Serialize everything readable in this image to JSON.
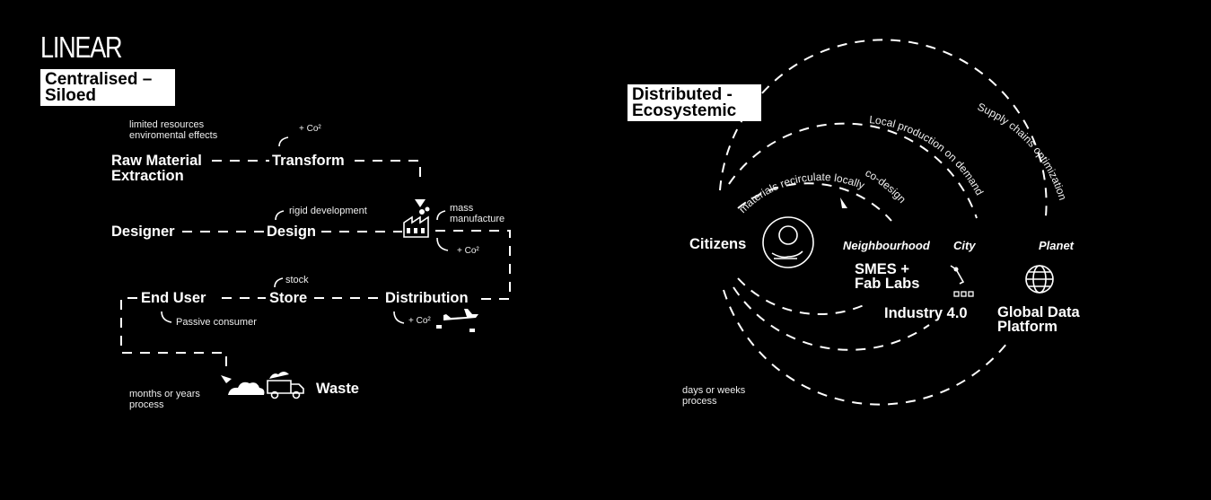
{
  "linear": {
    "title": "LINEAR",
    "subtitle_line1": "Centralised –",
    "subtitle_line2": "Siloed",
    "notes": {
      "resources_line1": "limited resources",
      "resources_line2": "enviromental effects",
      "co2_transform": "+ Co²",
      "rigid": "rigid development",
      "mass_line1": "mass",
      "mass_line2": "manufacture",
      "co2_factory": "+ Co²",
      "stock": "stock",
      "passive": "Passive consumer",
      "co2_distribution": "+ Co²",
      "time_line1": "months or years",
      "time_line2": "process"
    },
    "nodes": {
      "raw_line1": "Raw Material",
      "raw_line2": "Extraction",
      "transform": "Transform",
      "designer": "Designer",
      "design": "Design",
      "end_user": "End User",
      "store": "Store",
      "distribution": "Distribution",
      "waste": "Waste"
    }
  },
  "distributed": {
    "subtitle_line1": "Distributed -",
    "subtitle_line2": "Ecosystemic",
    "arc_labels": {
      "recirculate": "materials recirculate locally",
      "codesign": "co-design",
      "local_production": "Local production on demand",
      "supply": "Supply chains optimization"
    },
    "scales": {
      "citizens": "Citizens",
      "neighbourhood": "Neighbourhood",
      "city": "City",
      "planet": "Planet"
    },
    "actors": {
      "smes_line1": "SMES +",
      "smes_line2": "Fab Labs",
      "industry": "Industry 4.0",
      "global_line1": "Global Data",
      "global_line2": "Platform"
    },
    "time_line1": "days or weeks",
    "time_line2": "process"
  },
  "icons": [
    "factory-icon",
    "airplane-icon",
    "garbage-truck-icon",
    "earth-hands-icon",
    "robot-arm-icon",
    "globe-icon"
  ]
}
